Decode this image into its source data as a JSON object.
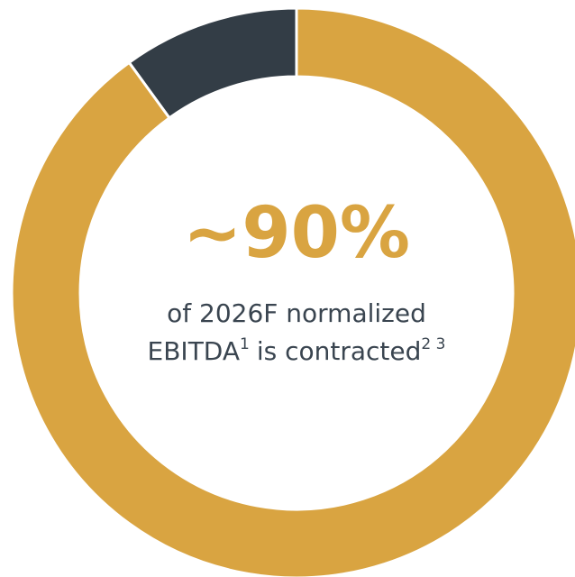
{
  "chart_data": {
    "type": "donut",
    "values": [
      90,
      10
    ],
    "colors": [
      "#d9a441",
      "#333d46"
    ],
    "center_label": "~90%",
    "center_text": [
      "of 2026F normalized",
      "EBITDA",
      "1",
      "is contracted",
      "2 3"
    ]
  }
}
